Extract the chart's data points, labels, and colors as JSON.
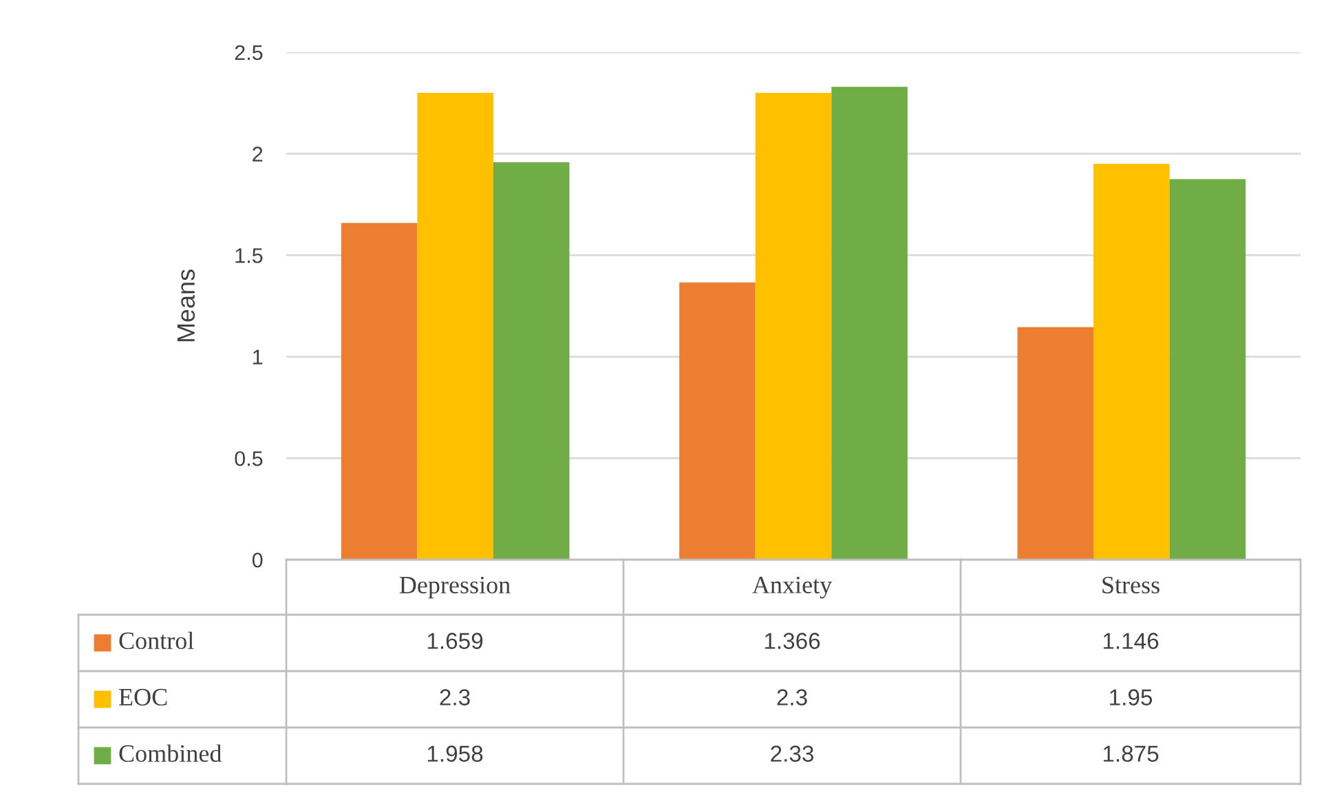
{
  "chart_data": {
    "type": "bar",
    "ylabel": "Means",
    "categories": [
      "Depression",
      "Anxiety",
      "Stress"
    ],
    "series": [
      {
        "name": "Control",
        "color": "#ed7d31",
        "values": [
          1.659,
          1.366,
          1.146
        ]
      },
      {
        "name": "EOC",
        "color": "#ffc000",
        "values": [
          2.3,
          2.3,
          1.95
        ]
      },
      {
        "name": "Combined",
        "color": "#70ad47",
        "values": [
          1.958,
          2.33,
          1.875
        ]
      }
    ],
    "ylim": [
      0,
      2.5
    ],
    "yticks": [
      0,
      0.5,
      1,
      1.5,
      2,
      2.5
    ],
    "grid": "y",
    "legend": "bottom",
    "data_labels": true
  }
}
